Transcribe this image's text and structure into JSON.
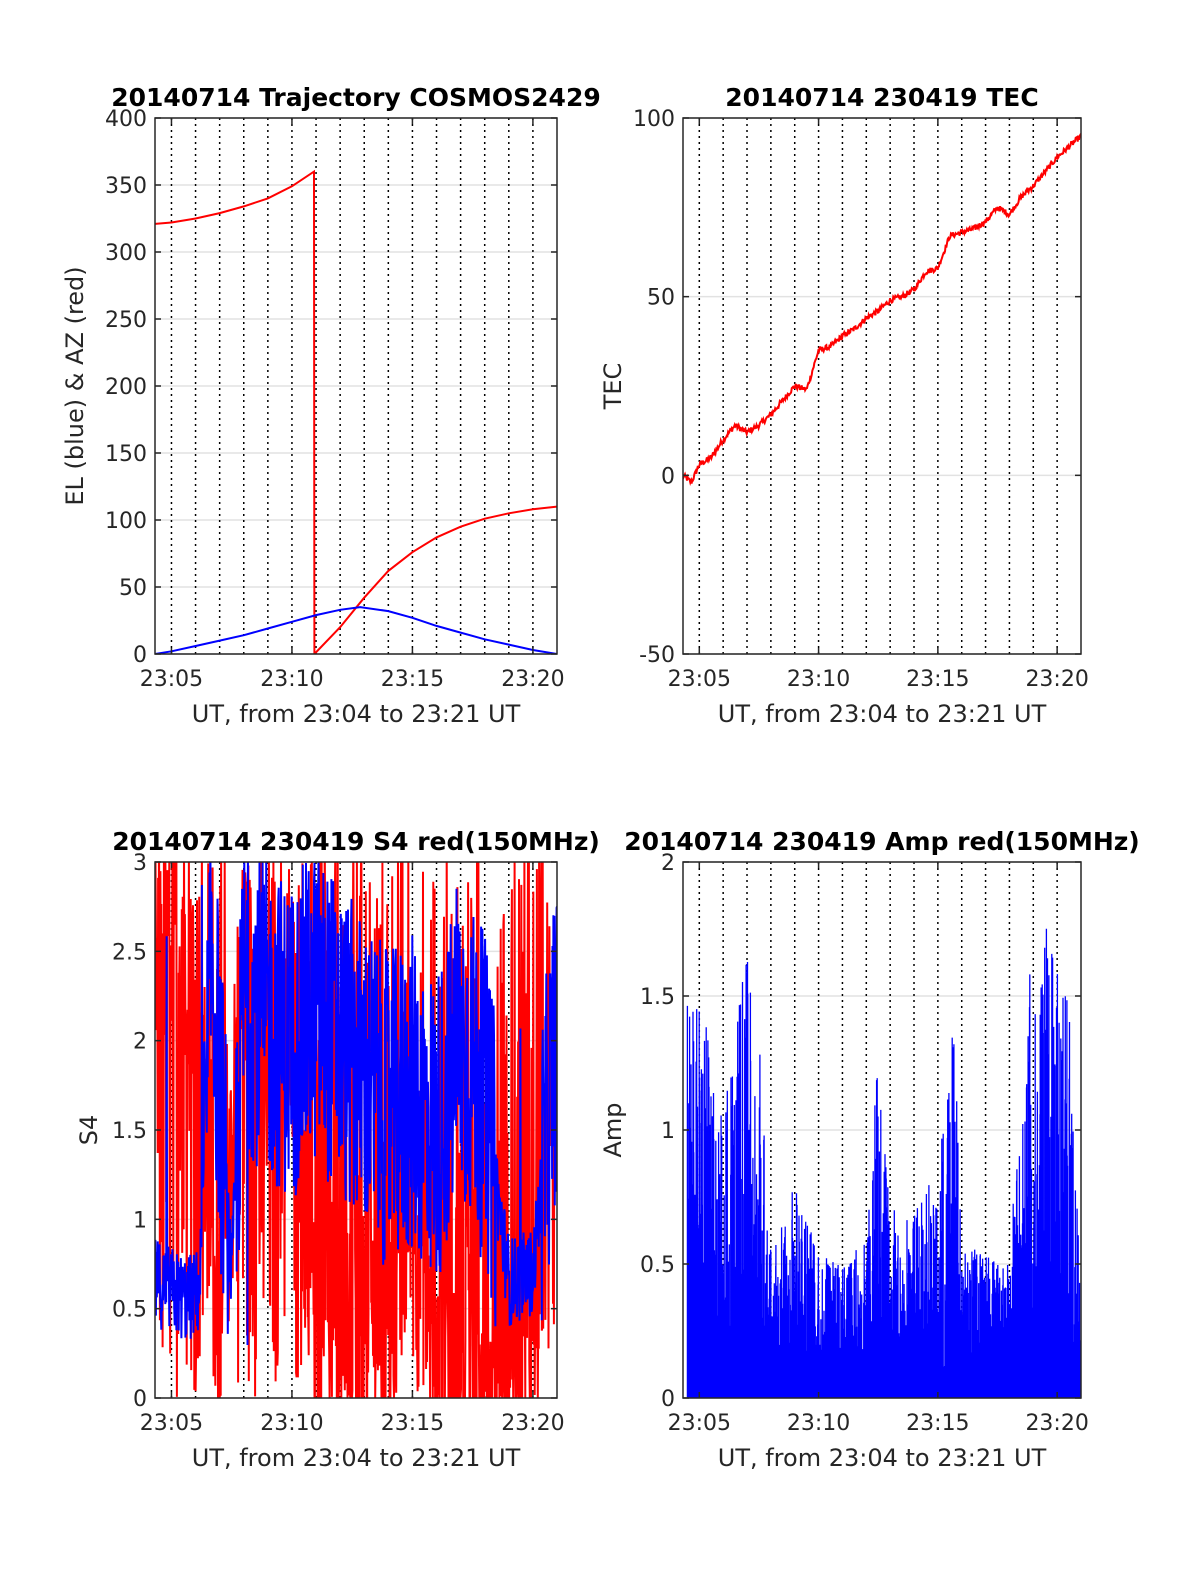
{
  "chart_data": [
    {
      "type": "line",
      "title": "20140714 Trajectory COSMOS2429",
      "xlabel": "UT, from 23:04 to 23:21 UT",
      "ylabel": "EL (blue) & AZ (red)",
      "xlim": [
        "23:04:19",
        "23:21:00"
      ],
      "ylim": [
        0,
        400
      ],
      "x_ticks": [
        "23:05",
        "23:10",
        "23:15",
        "23:20"
      ],
      "y_ticks": [
        "0",
        "50",
        "100",
        "150",
        "200",
        "250",
        "300",
        "350",
        "400"
      ],
      "grid": true,
      "series": [
        {
          "color": "#ff0000",
          "x": [
            "23:04:19",
            "23:05:00",
            "23:06:00",
            "23:07:00",
            "23:08:00",
            "23:09:00",
            "23:10:00",
            "23:10:55",
            "23:10:56",
            "23:12:00",
            "23:13:00",
            "23:14:00",
            "23:15:00",
            "23:16:00",
            "23:17:00",
            "23:18:00",
            "23:19:00",
            "23:20:00",
            "23:21:00"
          ],
          "values": [
            321,
            322,
            325,
            329,
            334,
            340,
            349,
            360,
            0,
            20,
            42,
            62,
            76,
            87,
            95,
            101,
            105,
            108,
            110
          ]
        },
        {
          "color": "#0000ff",
          "x": [
            "23:04:19",
            "23:05:00",
            "23:06:00",
            "23:07:00",
            "23:08:00",
            "23:09:00",
            "23:10:00",
            "23:11:00",
            "23:12:00",
            "23:12:50",
            "23:14:00",
            "23:15:00",
            "23:16:00",
            "23:17:00",
            "23:18:00",
            "23:19:00",
            "23:20:00",
            "23:21:00"
          ],
          "values": [
            0,
            2,
            6,
            10,
            14,
            19,
            24,
            29,
            33,
            35,
            32,
            27,
            21,
            16,
            11,
            7,
            3,
            0
          ]
        }
      ]
    },
    {
      "type": "line",
      "title": "20140714 230419 TEC",
      "xlabel": "UT, from 23:04 to 23:21 UT",
      "ylabel": "TEC",
      "xlim": [
        "23:04:19",
        "23:21:00"
      ],
      "ylim": [
        -50,
        100
      ],
      "x_ticks": [
        "23:05",
        "23:10",
        "23:15",
        "23:20"
      ],
      "y_ticks": [
        "-50",
        "0",
        "50",
        "100"
      ],
      "grid": true,
      "series": [
        {
          "color": "#ff0000",
          "x": [
            "23:04:19",
            "23:04:40",
            "23:05:00",
            "23:05:30",
            "23:06:00",
            "23:06:30",
            "23:07:00",
            "23:07:30",
            "23:08:00",
            "23:08:30",
            "23:09:00",
            "23:09:30",
            "23:10:00",
            "23:10:30",
            "23:11:00",
            "23:11:30",
            "23:12:00",
            "23:12:30",
            "23:13:00",
            "23:13:30",
            "23:14:00",
            "23:14:30",
            "23:15:00",
            "23:15:30",
            "23:16:00",
            "23:16:30",
            "23:17:00",
            "23:17:30",
            "23:18:00",
            "23:18:30",
            "23:19:00",
            "23:19:30",
            "23:20:00",
            "23:20:30",
            "23:21:00"
          ],
          "values": [
            0,
            -2,
            3,
            5,
            10,
            14,
            12,
            14,
            17,
            21,
            25,
            24,
            35,
            36,
            39,
            41,
            44,
            46,
            49,
            50,
            52,
            57,
            58,
            67,
            68,
            69,
            71,
            75,
            73,
            78,
            81,
            85,
            89,
            92,
            95
          ]
        }
      ]
    },
    {
      "type": "line",
      "title": "20140714 230419 S4 red(150MHz)",
      "xlabel": "UT, from 23:04 to 23:21 UT",
      "ylabel": "S4",
      "xlim": [
        "23:04:19",
        "23:21:00"
      ],
      "ylim": [
        0,
        3
      ],
      "x_ticks": [
        "23:05",
        "23:10",
        "23:15",
        "23:20"
      ],
      "y_ticks": [
        "0",
        "0.5",
        "1",
        "1.5",
        "2",
        "2.5",
        "3"
      ],
      "grid": true,
      "series": [
        {
          "color": "#ff0000",
          "description_ranges": "strongly fluctuating between 0 and 3",
          "x": [
            "23:04:19",
            "23:05:30",
            "23:06:10",
            "23:07:00",
            "23:08:00",
            "23:09:00",
            "23:10:00",
            "23:11:00",
            "23:12:00",
            "23:13:00",
            "23:14:00",
            "23:15:00",
            "23:16:00",
            "23:17:00",
            "23:18:00",
            "23:19:00",
            "23:20:00",
            "23:21:00"
          ],
          "values": [
            2.4,
            2.7,
            2.3,
            0,
            2.6,
            1.8,
            2.2,
            0,
            0,
            0,
            0,
            1.2,
            0,
            0,
            0,
            0,
            0,
            2.3
          ]
        },
        {
          "color": "#0000ff",
          "x": [
            "23:04:19",
            "23:05:00",
            "23:05:40",
            "23:06:10",
            "23:06:40",
            "23:07:30",
            "23:08:00",
            "23:09:00",
            "23:10:00",
            "23:11:00",
            "23:12:00",
            "23:13:00",
            "23:14:00",
            "23:15:00",
            "23:16:00",
            "23:17:00",
            "23:18:00",
            "23:19:00",
            "23:20:00",
            "23:21:00"
          ],
          "values": [
            0.65,
            0.6,
            0.55,
            0.6,
            2.5,
            0.65,
            2.3,
            2.1,
            2.0,
            2.2,
            2.0,
            1.8,
            1.6,
            1.7,
            1.5,
            2.0,
            1.7,
            0.65,
            0.7,
            2.1
          ]
        }
      ]
    },
    {
      "type": "line",
      "title": "20140714 230419 Amp red(150MHz)",
      "xlabel": "UT, from 23:04 to 23:21 UT",
      "ylabel": "Amp",
      "xlim": [
        "23:04:19",
        "23:21:00"
      ],
      "ylim": [
        0,
        2
      ],
      "x_ticks": [
        "23:05",
        "23:10",
        "23:15",
        "23:20"
      ],
      "y_ticks": [
        "0",
        "0.5",
        "1",
        "1.5",
        "2"
      ],
      "grid": true,
      "series": [
        {
          "color": "#0000ff",
          "x": [
            "23:04:30",
            "23:05:00",
            "23:05:30",
            "23:06:00",
            "23:06:30",
            "23:07:00",
            "23:07:30",
            "23:08:00",
            "23:09:00",
            "23:10:00",
            "23:11:00",
            "23:12:00",
            "23:12:30",
            "23:13:00",
            "23:14:00",
            "23:15:00",
            "23:15:40",
            "23:16:00",
            "23:17:00",
            "23:18:00",
            "23:18:50",
            "23:19:30",
            "23:20:00",
            "23:20:30",
            "23:21:00"
          ],
          "peaks": [
            1.5,
            1.55,
            1.3,
            1.1,
            1.4,
            1.7,
            1.4,
            0.6,
            0.8,
            0.55,
            0.5,
            0.6,
            1.35,
            0.7,
            0.75,
            0.85,
            1.45,
            0.6,
            0.55,
            0.5,
            1.7,
            1.8,
            1.6,
            1.5,
            0.35
          ]
        }
      ]
    }
  ]
}
